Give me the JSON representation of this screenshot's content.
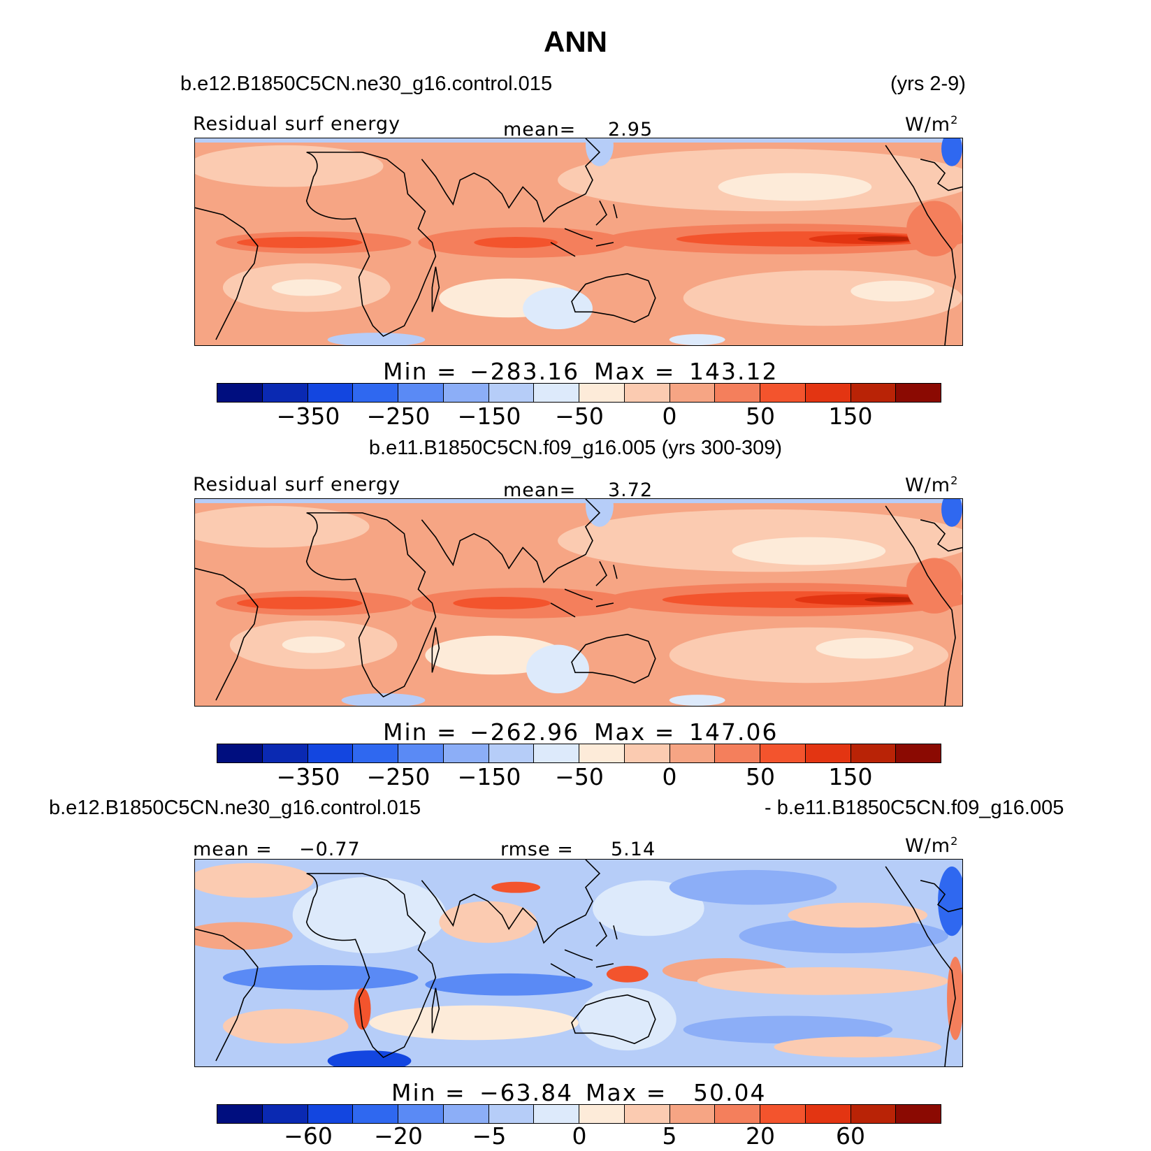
{
  "title": "ANN",
  "palette": [
    "#000e7f",
    "#0a29b2",
    "#1346e0",
    "#2f68f0",
    "#5a8af5",
    "#8caef7",
    "#b6cdf8",
    "#ddeafb",
    "#fdebd9",
    "#fbcbb1",
    "#f6a584",
    "#f47f5c",
    "#f3542d",
    "#e33512",
    "#b92306",
    "#8b0a02"
  ],
  "panels": [
    {
      "case_left": "b.e12.B1850C5CN.ne30_g16.control.015",
      "case_right": "(yrs 2-9)",
      "var_label": "Residual surf energy",
      "stat_label": "mean=",
      "stat_value": "2.95",
      "units": "W/m",
      "units_exp": "2",
      "min_label": "Min =",
      "min_value": "−283.16",
      "max_label": "Max =",
      "max_value": "143.12",
      "ticks": [
        "−350",
        "−250",
        "−150",
        "−50",
        "0",
        "50",
        "150"
      ]
    },
    {
      "case_center": "b.e11.B1850C5CN.f09_g16.005 (yrs 300-309)",
      "var_label": "Residual surf energy",
      "stat_label": "mean=",
      "stat_value": "3.72",
      "units": "W/m",
      "units_exp": "2",
      "min_label": "Min =",
      "min_value": "−262.96",
      "max_label": "Max =",
      "max_value": "147.06",
      "ticks": [
        "−350",
        "−250",
        "−150",
        "−50",
        "0",
        "50",
        "150"
      ]
    },
    {
      "case_left": "b.e12.B1850C5CN.ne30_g16.control.015",
      "case_right": "- b.e11.B1850C5CN.f09_g16.005",
      "mean_label": "mean =",
      "mean_value": "−0.77",
      "rmse_label": "rmse =",
      "rmse_value": "5.14",
      "units": "W/m",
      "units_exp": "2",
      "min_label": "Min =",
      "min_value": "−63.84",
      "max_label": "Max =",
      "max_value": "50.04",
      "ticks": [
        "−60",
        "−20",
        "−5",
        "0",
        "5",
        "20",
        "60"
      ]
    }
  ]
}
